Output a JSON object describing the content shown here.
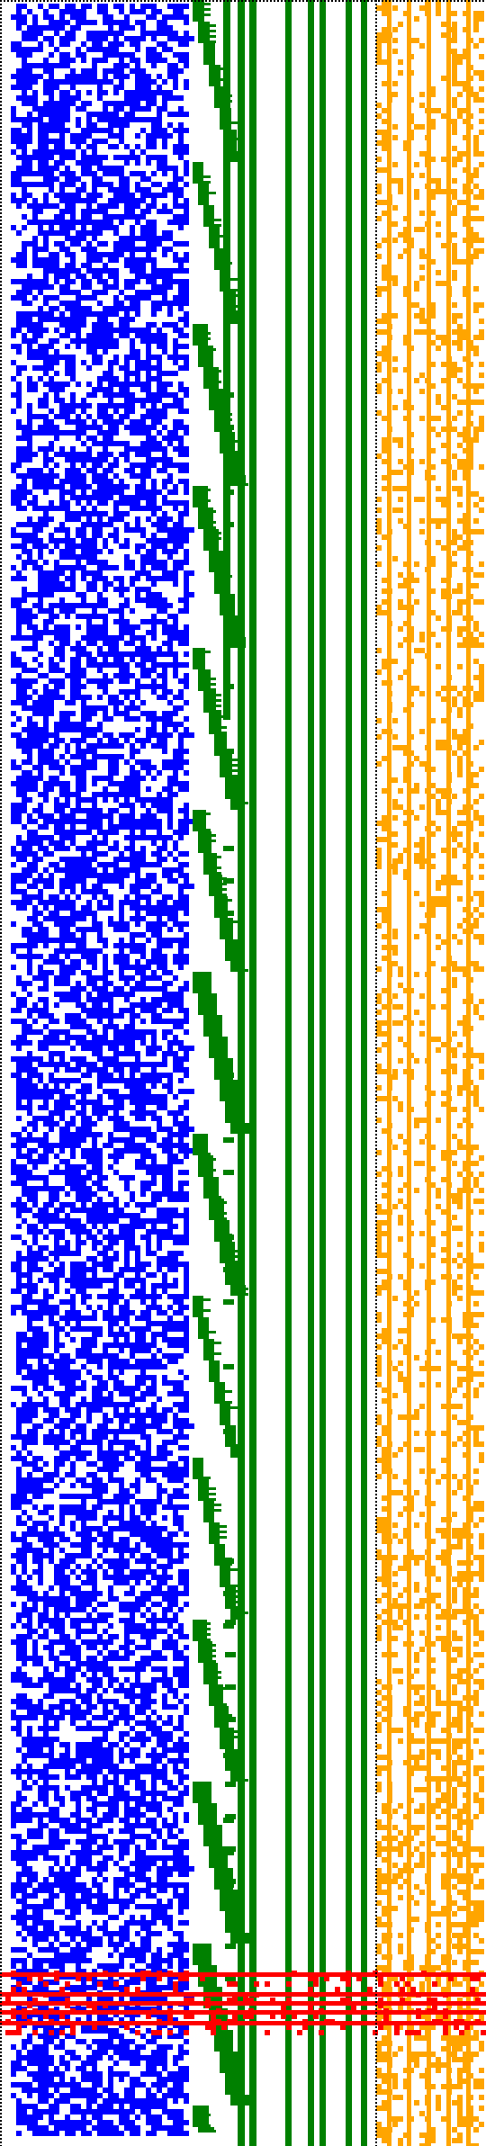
{
  "colors": {
    "background": "#ffffff",
    "border": "#000000",
    "blue_panel": "#0000ff",
    "green_panel": "#008000",
    "orange_panel": "#ffa500",
    "red_band": "#ff0000"
  },
  "panels": [
    {
      "name": "blue-random-field",
      "color": "#0000ff",
      "pattern": "dense-noise"
    },
    {
      "name": "green-staircase-lines",
      "color": "#008000",
      "pattern": "stairs-and-vertical-lines"
    },
    {
      "name": "orange-sparse-field",
      "color": "#ffa500",
      "pattern": "sparse-noise"
    }
  ],
  "bands": {
    "count_visible": 5,
    "description_color": "#ff0000"
  }
}
